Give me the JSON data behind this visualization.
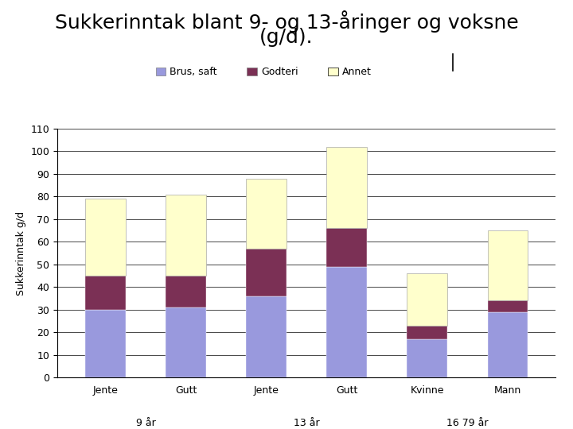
{
  "title_line1": "Sukkerinntak blant 9- og 13-åringer og voksne",
  "title_line2": "(g/d).",
  "ylabel": "Sukkerinntak g/d",
  "categories": [
    "Jente",
    "Gutt",
    "Jente",
    "Gutt",
    "Kvinne",
    "Mann"
  ],
  "group_labels": [
    "9 år",
    "13 år",
    "16 79 år"
  ],
  "group_positions": [
    0.5,
    2.5,
    4.5
  ],
  "brus": [
    30,
    31,
    36,
    49,
    17,
    29
  ],
  "godteri": [
    15,
    14,
    21,
    17,
    6,
    5
  ],
  "annet": [
    34,
    36,
    31,
    36,
    23,
    31
  ],
  "color_brus": "#9999dd",
  "color_godteri": "#7b3055",
  "color_annet": "#ffffcc",
  "ylim": [
    0,
    110
  ],
  "yticks": [
    0,
    10,
    20,
    30,
    40,
    50,
    60,
    70,
    80,
    90,
    100,
    110
  ],
  "legend_labels": [
    "Brus, saft",
    "Godteri",
    "Annet"
  ],
  "title_fontsize": 18,
  "ylabel_fontsize": 9,
  "tick_fontsize": 9,
  "bar_width": 0.5
}
